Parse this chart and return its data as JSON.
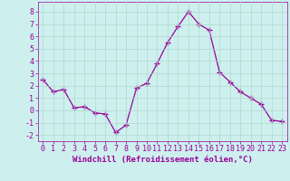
{
  "x": [
    0,
    1,
    2,
    3,
    4,
    5,
    6,
    7,
    8,
    9,
    10,
    11,
    12,
    13,
    14,
    15,
    16,
    17,
    18,
    19,
    20,
    21,
    22,
    23
  ],
  "y": [
    2.5,
    1.5,
    1.7,
    0.2,
    0.3,
    -0.2,
    -0.3,
    -1.8,
    -1.2,
    1.8,
    2.2,
    3.8,
    5.5,
    6.8,
    8.0,
    7.0,
    6.5,
    3.1,
    2.3,
    1.5,
    1.0,
    0.5,
    -0.8,
    -0.9
  ],
  "line_color": "#990099",
  "marker": "+",
  "marker_size": 4,
  "bg_color": "#cdf0ee",
  "grid_color": "#b0d8cc",
  "xlabel": "Windchill (Refroidissement éolien,°C)",
  "xlabel_fontsize": 6.5,
  "tick_fontsize": 6,
  "ylim": [
    -2.5,
    8.8
  ],
  "xlim": [
    -0.5,
    23.5
  ],
  "yticks": [
    -2,
    -1,
    0,
    1,
    2,
    3,
    4,
    5,
    6,
    7,
    8
  ],
  "xticks": [
    0,
    1,
    2,
    3,
    4,
    5,
    6,
    7,
    8,
    9,
    10,
    11,
    12,
    13,
    14,
    15,
    16,
    17,
    18,
    19,
    20,
    21,
    22,
    23
  ]
}
